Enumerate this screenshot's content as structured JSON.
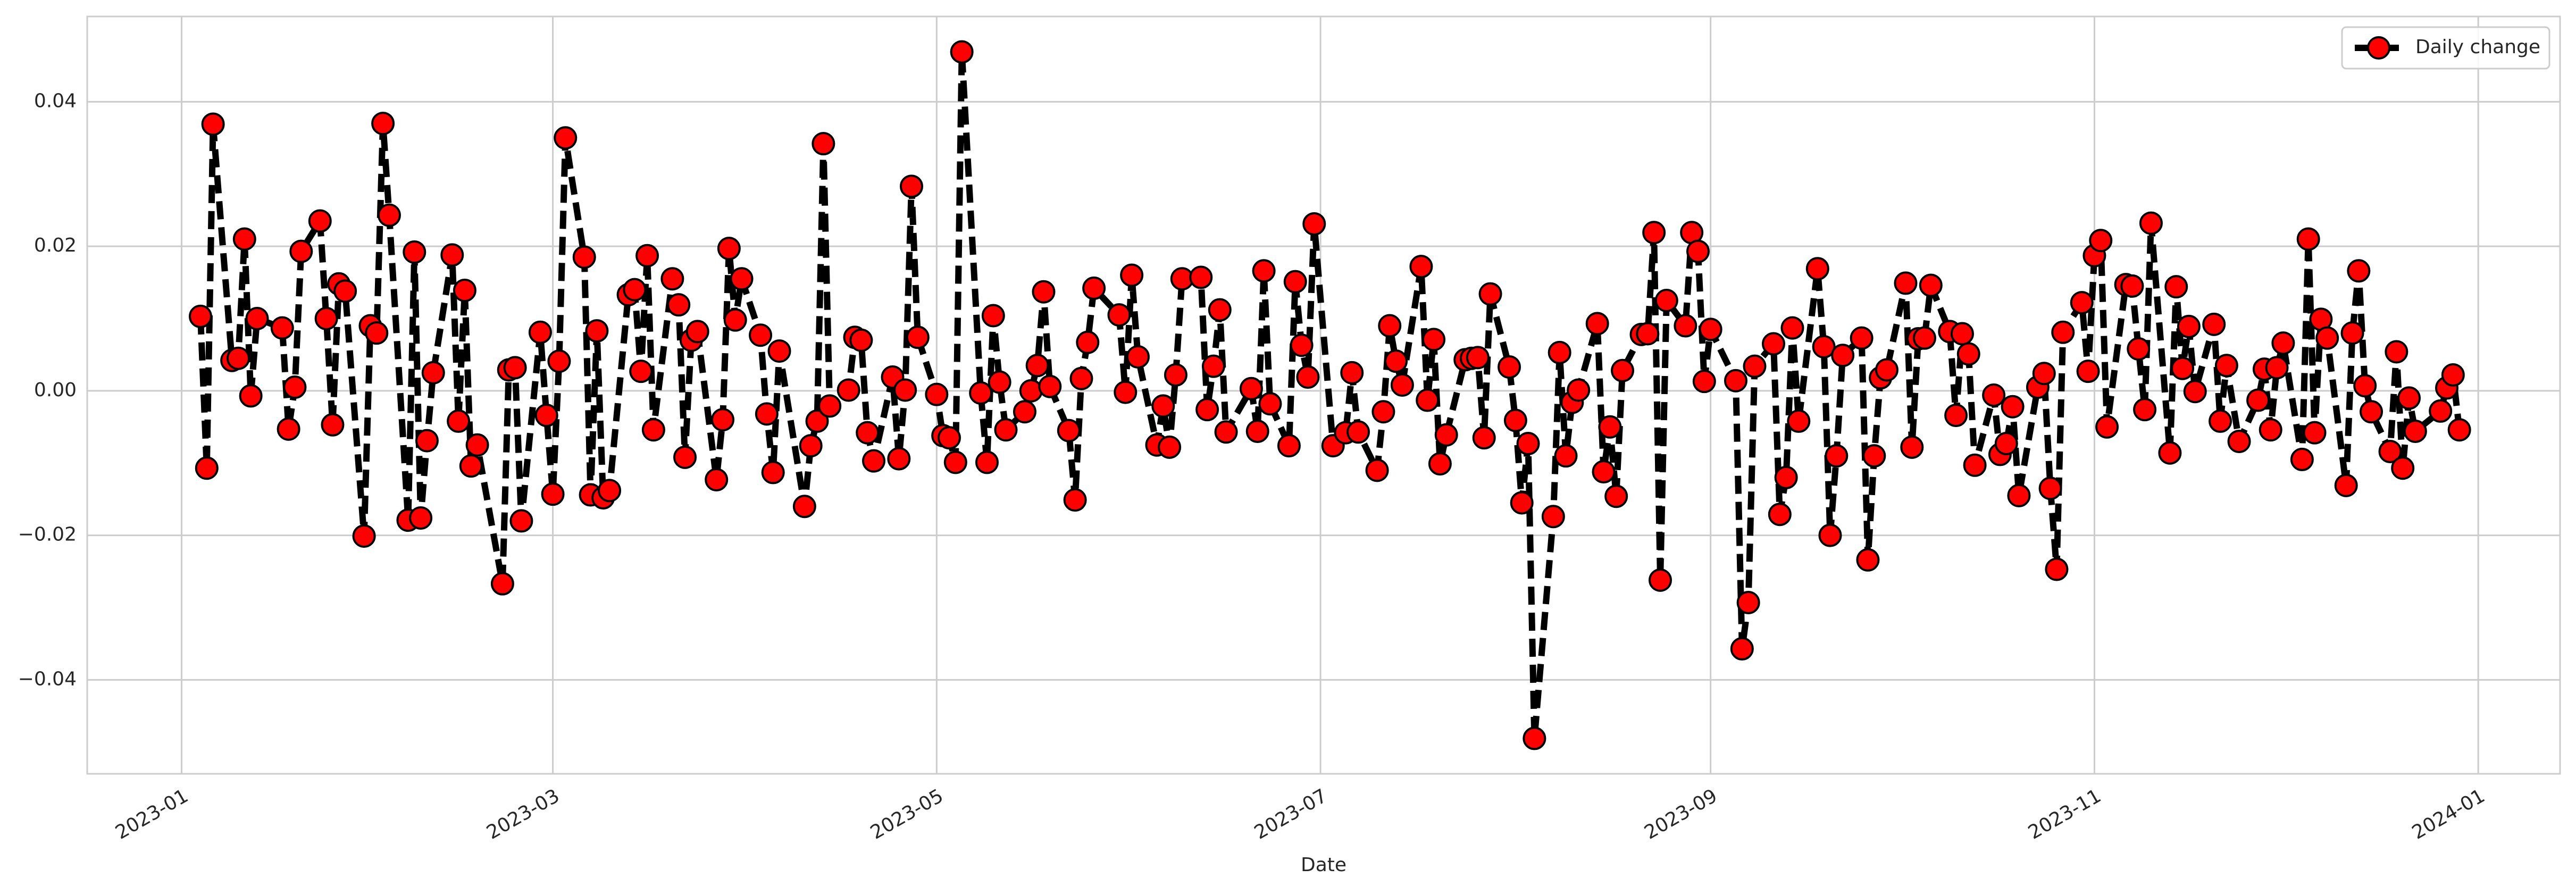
{
  "chart_data": {
    "type": "line",
    "xlabel": "Date",
    "x": [
      "2023-01-04",
      "2023-01-05",
      "2023-01-06",
      "2023-01-09",
      "2023-01-10",
      "2023-01-11",
      "2023-01-12",
      "2023-01-13",
      "2023-01-17",
      "2023-01-18",
      "2023-01-19",
      "2023-01-20",
      "2023-01-23",
      "2023-01-24",
      "2023-01-25",
      "2023-01-26",
      "2023-01-27",
      "2023-01-30",
      "2023-01-31",
      "2023-02-01",
      "2023-02-02",
      "2023-02-03",
      "2023-02-06",
      "2023-02-07",
      "2023-02-08",
      "2023-02-09",
      "2023-02-10",
      "2023-02-13",
      "2023-02-14",
      "2023-02-15",
      "2023-02-16",
      "2023-02-17",
      "2023-02-21",
      "2023-02-22",
      "2023-02-23",
      "2023-02-24",
      "2023-02-27",
      "2023-02-28",
      "2023-03-01",
      "2023-03-02",
      "2023-03-03",
      "2023-03-06",
      "2023-03-07",
      "2023-03-08",
      "2023-03-09",
      "2023-03-10",
      "2023-03-13",
      "2023-03-14",
      "2023-03-15",
      "2023-03-16",
      "2023-03-17",
      "2023-03-20",
      "2023-03-21",
      "2023-03-22",
      "2023-03-23",
      "2023-03-24",
      "2023-03-27",
      "2023-03-28",
      "2023-03-29",
      "2023-03-30",
      "2023-03-31",
      "2023-04-03",
      "2023-04-04",
      "2023-04-05",
      "2023-04-06",
      "2023-04-10",
      "2023-04-11",
      "2023-04-12",
      "2023-04-13",
      "2023-04-14",
      "2023-04-17",
      "2023-04-18",
      "2023-04-19",
      "2023-04-20",
      "2023-04-21",
      "2023-04-24",
      "2023-04-25",
      "2023-04-26",
      "2023-04-27",
      "2023-04-28",
      "2023-05-01",
      "2023-05-02",
      "2023-05-03",
      "2023-05-04",
      "2023-05-05",
      "2023-05-08",
      "2023-05-09",
      "2023-05-10",
      "2023-05-11",
      "2023-05-12",
      "2023-05-15",
      "2023-05-16",
      "2023-05-17",
      "2023-05-18",
      "2023-05-19",
      "2023-05-22",
      "2023-05-23",
      "2023-05-24",
      "2023-05-25",
      "2023-05-26",
      "2023-05-30",
      "2023-05-31",
      "2023-06-01",
      "2023-06-02",
      "2023-06-05",
      "2023-06-06",
      "2023-06-07",
      "2023-06-08",
      "2023-06-09",
      "2023-06-12",
      "2023-06-13",
      "2023-06-14",
      "2023-06-15",
      "2023-06-16",
      "2023-06-20",
      "2023-06-21",
      "2023-06-22",
      "2023-06-23",
      "2023-06-26",
      "2023-06-27",
      "2023-06-28",
      "2023-06-29",
      "2023-06-30",
      "2023-07-03",
      "2023-07-05",
      "2023-07-06",
      "2023-07-07",
      "2023-07-10",
      "2023-07-11",
      "2023-07-12",
      "2023-07-13",
      "2023-07-14",
      "2023-07-17",
      "2023-07-18",
      "2023-07-19",
      "2023-07-20",
      "2023-07-21",
      "2023-07-24",
      "2023-07-25",
      "2023-07-26",
      "2023-07-27",
      "2023-07-28",
      "2023-07-31",
      "2023-08-01",
      "2023-08-02",
      "2023-08-03",
      "2023-08-04",
      "2023-08-07",
      "2023-08-08",
      "2023-08-09",
      "2023-08-10",
      "2023-08-11",
      "2023-08-14",
      "2023-08-15",
      "2023-08-16",
      "2023-08-17",
      "2023-08-18",
      "2023-08-21",
      "2023-08-22",
      "2023-08-23",
      "2023-08-24",
      "2023-08-25",
      "2023-08-28",
      "2023-08-29",
      "2023-08-30",
      "2023-08-31",
      "2023-09-01",
      "2023-09-05",
      "2023-09-06",
      "2023-09-07",
      "2023-09-08",
      "2023-09-11",
      "2023-09-12",
      "2023-09-13",
      "2023-09-14",
      "2023-09-15",
      "2023-09-18",
      "2023-09-19",
      "2023-09-20",
      "2023-09-21",
      "2023-09-22",
      "2023-09-25",
      "2023-09-26",
      "2023-09-27",
      "2023-09-28",
      "2023-09-29",
      "2023-10-02",
      "2023-10-03",
      "2023-10-04",
      "2023-10-05",
      "2023-10-06",
      "2023-10-09",
      "2023-10-10",
      "2023-10-11",
      "2023-10-12",
      "2023-10-13",
      "2023-10-16",
      "2023-10-17",
      "2023-10-18",
      "2023-10-19",
      "2023-10-20",
      "2023-10-23",
      "2023-10-24",
      "2023-10-25",
      "2023-10-26",
      "2023-10-27",
      "2023-10-30",
      "2023-10-31",
      "2023-11-01",
      "2023-11-02",
      "2023-11-03",
      "2023-11-06",
      "2023-11-07",
      "2023-11-08",
      "2023-11-09",
      "2023-11-10",
      "2023-11-13",
      "2023-11-14",
      "2023-11-15",
      "2023-11-16",
      "2023-11-17",
      "2023-11-20",
      "2023-11-21",
      "2023-11-22",
      "2023-11-24",
      "2023-11-27",
      "2023-11-28",
      "2023-11-29",
      "2023-11-30",
      "2023-12-01",
      "2023-12-04",
      "2023-12-05",
      "2023-12-06",
      "2023-12-07",
      "2023-12-08",
      "2023-12-11",
      "2023-12-12",
      "2023-12-13",
      "2023-12-14",
      "2023-12-15",
      "2023-12-18",
      "2023-12-19",
      "2023-12-20",
      "2023-12-21",
      "2023-12-22",
      "2023-12-26",
      "2023-12-27",
      "2023-12-28",
      "2023-12-29"
    ],
    "series": [
      {
        "name": "Daily change",
        "color": "#ff0000",
        "line_color": "#000000",
        "values": [
          0.0103,
          -0.0107,
          0.0369,
          0.0042,
          0.0045,
          0.021,
          -0.0007,
          0.01,
          0.0087,
          -0.0053,
          0.0005,
          0.0193,
          0.0235,
          0.01,
          -0.0047,
          0.0148,
          0.0138,
          -0.0201,
          0.009,
          0.008,
          0.037,
          0.0243,
          -0.0179,
          0.0192,
          -0.0176,
          -0.0069,
          0.0025,
          0.0188,
          -0.0042,
          0.0139,
          -0.0104,
          -0.0075,
          -0.0267,
          0.0029,
          0.0032,
          -0.018,
          0.0081,
          -0.0034,
          -0.0143,
          0.0041,
          0.035,
          0.0185,
          -0.0144,
          0.0083,
          -0.0148,
          -0.0138,
          0.0133,
          0.014,
          0.0027,
          0.0187,
          -0.0054,
          0.0155,
          0.0119,
          -0.0092,
          0.007,
          0.0082,
          -0.0123,
          -0.004,
          0.0197,
          0.0098,
          0.0155,
          0.0077,
          -0.0032,
          -0.0113,
          0.0055,
          -0.016,
          -0.0076,
          -0.0042,
          0.0342,
          -0.0021,
          0.0001,
          0.0074,
          0.007,
          -0.0058,
          -0.0097,
          0.0019,
          -0.0094,
          0.0001,
          0.0283,
          0.0074,
          -0.0005,
          -0.0062,
          -0.0065,
          -0.0099,
          0.0469,
          -0.0003,
          -0.0099,
          0.0104,
          0.0012,
          -0.0054,
          -0.0029,
          0.0,
          0.0035,
          0.0137,
          0.0006,
          -0.0055,
          -0.0151,
          0.0017,
          0.0067,
          0.0142,
          0.0105,
          -0.0002,
          0.016,
          0.0047,
          -0.0075,
          -0.0021,
          -0.0078,
          0.0022,
          0.0155,
          0.0157,
          -0.0026,
          0.0034,
          0.0112,
          -0.0057,
          0.0003,
          -0.0056,
          0.0166,
          -0.0018,
          -0.0076,
          0.0151,
          0.0063,
          0.0019,
          0.0231,
          -0.0076,
          -0.0058,
          0.0025,
          -0.0057,
          -0.011,
          -0.0029,
          0.009,
          0.0041,
          0.0008,
          0.0172,
          -0.0013,
          0.0071,
          -0.0101,
          -0.0061,
          0.0043,
          0.0045,
          0.0046,
          -0.0065,
          0.0134,
          0.0033,
          -0.0041,
          -0.0155,
          -0.0073,
          -0.0481,
          -0.0174,
          0.0053,
          -0.009,
          -0.0016,
          0.0001,
          0.0093,
          -0.0112,
          -0.005,
          -0.0146,
          0.0028,
          0.0078,
          0.0079,
          0.0219,
          -0.0262,
          0.0125,
          0.009,
          0.0219,
          0.0193,
          0.0013,
          0.0085,
          0.0014,
          -0.0357,
          -0.0293,
          0.0034,
          0.0065,
          -0.0171,
          -0.012,
          0.0087,
          -0.0042,
          0.0169,
          0.0061,
          -0.02,
          -0.009,
          0.0049,
          0.0073,
          -0.0234,
          -0.009,
          0.0018,
          0.0029,
          0.0149,
          -0.0078,
          0.0072,
          0.0073,
          0.0146,
          0.0082,
          -0.0034,
          0.0079,
          0.0051,
          -0.0103,
          -0.0006,
          -0.0088,
          -0.0073,
          -0.0022,
          -0.0145,
          0.0005,
          0.0024,
          -0.0135,
          -0.0247,
          0.0081,
          0.0122,
          0.0027,
          0.0187,
          0.0208,
          -0.005,
          0.0147,
          0.0145,
          0.0058,
          -0.0026,
          0.0232,
          -0.0086,
          0.0144,
          0.0031,
          0.0089,
          -0.0001,
          0.0092,
          -0.0042,
          0.0035,
          -0.007,
          -0.0013,
          0.003,
          -0.0054,
          0.0032,
          0.0066,
          -0.0095,
          0.021,
          -0.0058,
          0.0099,
          0.0073,
          -0.0131,
          0.008,
          0.0166,
          0.0007,
          -0.0029,
          -0.0084,
          0.0054,
          -0.0107,
          -0.001,
          -0.0056,
          -0.0028,
          0.0004,
          0.0022,
          -0.0054
        ]
      }
    ],
    "xlim": [
      "2022-12-17",
      "2024-01-14"
    ],
    "xticks": [
      "2023-01",
      "2023-03",
      "2023-05",
      "2023-07",
      "2023-09",
      "2023-11",
      "2024-01"
    ],
    "ylim": [
      -0.053,
      0.0518
    ],
    "yticks": [
      {
        "value": -0.04,
        "label": "−0.04"
      },
      {
        "value": -0.02,
        "label": "−0.02"
      },
      {
        "value": 0,
        "label": "0.00"
      },
      0.02,
      0.04
    ],
    "grid": true,
    "legend": "upper right"
  }
}
